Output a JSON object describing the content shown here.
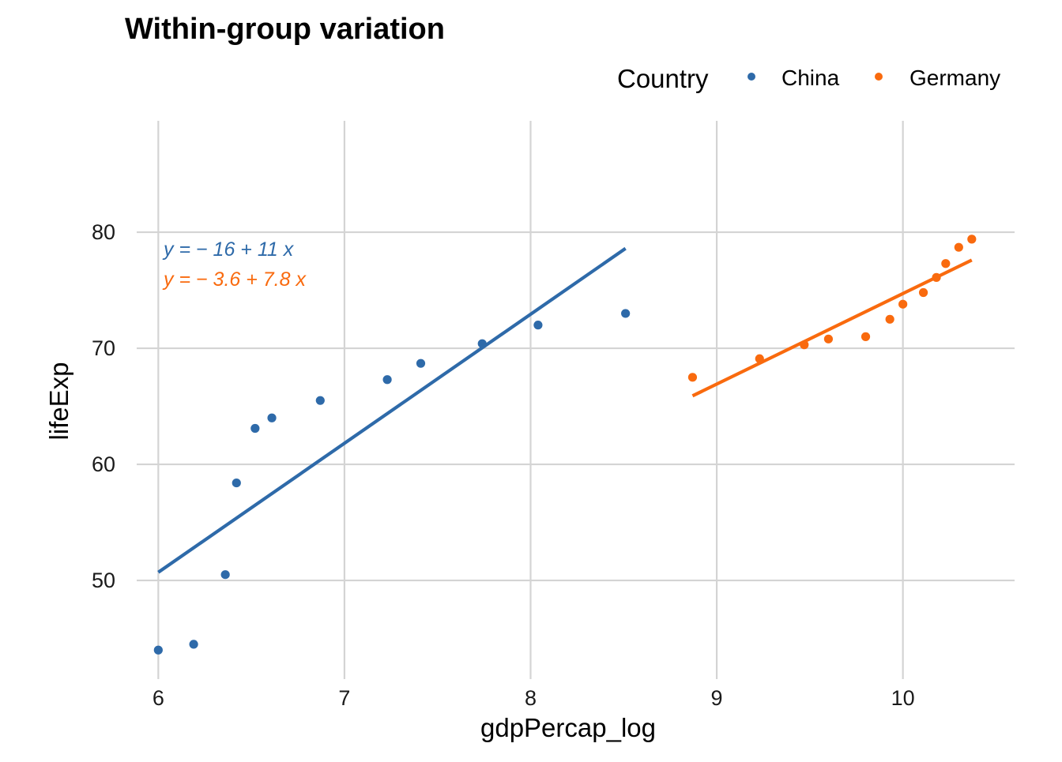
{
  "chart_data": {
    "type": "scatter",
    "title": "Within-group variation",
    "xlabel": "gdpPercap_log",
    "ylabel": "lifeExp",
    "xlim": [
      5.85,
      10.6
    ],
    "ylim": [
      41.5,
      89.8
    ],
    "x_ticks": [
      6,
      7,
      8,
      9,
      10
    ],
    "y_ticks": [
      50,
      60,
      70,
      80
    ],
    "grid": true,
    "legend": {
      "title": "Country",
      "position": "top-right"
    },
    "series": [
      {
        "name": "China",
        "color": "#2e6aa9",
        "points": [
          {
            "x": 6.0,
            "y": 44.0
          },
          {
            "x": 6.19,
            "y": 44.5
          },
          {
            "x": 6.36,
            "y": 50.5
          },
          {
            "x": 6.42,
            "y": 58.4
          },
          {
            "x": 6.52,
            "y": 63.1
          },
          {
            "x": 6.61,
            "y": 64.0
          },
          {
            "x": 6.87,
            "y": 65.5
          },
          {
            "x": 7.23,
            "y": 67.3
          },
          {
            "x": 7.41,
            "y": 68.7
          },
          {
            "x": 7.74,
            "y": 70.4
          },
          {
            "x": 8.04,
            "y": 72.0
          },
          {
            "x": 8.51,
            "y": 73.0
          }
        ],
        "fit": {
          "x_start": 6.0,
          "x_end": 8.51,
          "y_start": 50.7,
          "y_end": 78.6
        },
        "equation": "y = − 16 + 11 x"
      },
      {
        "name": "Germany",
        "color": "#f96a0e",
        "points": [
          {
            "x": 8.87,
            "y": 67.5
          },
          {
            "x": 9.23,
            "y": 69.1
          },
          {
            "x": 9.47,
            "y": 70.3
          },
          {
            "x": 9.6,
            "y": 70.8
          },
          {
            "x": 9.8,
            "y": 71.0
          },
          {
            "x": 9.93,
            "y": 72.5
          },
          {
            "x": 10.0,
            "y": 73.8
          },
          {
            "x": 10.11,
            "y": 74.8
          },
          {
            "x": 10.18,
            "y": 76.1
          },
          {
            "x": 10.23,
            "y": 77.3
          },
          {
            "x": 10.3,
            "y": 78.7
          },
          {
            "x": 10.37,
            "y": 79.4
          }
        ],
        "fit": {
          "x_start": 8.87,
          "x_end": 10.37,
          "y_start": 65.9,
          "y_end": 77.6
        },
        "equation": "y = − 3.6 + 7.8 x"
      }
    ]
  }
}
